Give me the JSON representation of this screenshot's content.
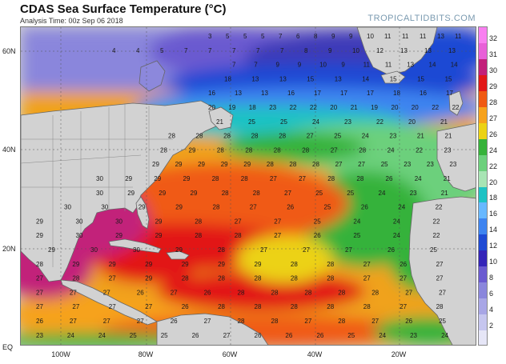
{
  "header": {
    "title": "CDAS Sea Surface Temperature (°C)",
    "subtitle": "Analysis Time: 00z Sep 06 2018",
    "brand": "TROPICALTIDBITS.COM"
  },
  "map": {
    "region": "North Atlantic Ocean",
    "ocean_color": "#d6d6d6",
    "land_color": "#d4d4d4",
    "y_labels": [
      "60N",
      "40N",
      "20N",
      "EQ"
    ],
    "x_labels": [
      "100W",
      "80W",
      "60W",
      "40W",
      "20W"
    ],
    "sst_values": [
      {
        "row": 1,
        "labels": [
          "3",
          "5",
          "5",
          "5",
          "7",
          "6",
          "8",
          "9",
          "9",
          "10",
          "11",
          "11",
          "11",
          "13",
          "11"
        ]
      },
      {
        "row": 2,
        "labels": [
          "4",
          "4",
          "5",
          "7",
          "7",
          "7",
          "7",
          "7",
          "8",
          "9",
          "10",
          "12",
          "13",
          "13",
          "13"
        ]
      },
      {
        "row": 3,
        "labels": [
          "7",
          "7",
          "9",
          "9",
          "10",
          "9",
          "11",
          "11",
          "13",
          "14",
          "14"
        ]
      },
      {
        "row": 4,
        "labels": [
          "18",
          "13",
          "13",
          "15",
          "13",
          "14",
          "15",
          "15",
          "15"
        ]
      },
      {
        "row": 5,
        "labels": [
          "16",
          "13",
          "13",
          "16",
          "17",
          "17",
          "17",
          "18",
          "16",
          "17"
        ]
      },
      {
        "row": 6,
        "labels": [
          "20",
          "19",
          "18",
          "23",
          "22",
          "22",
          "20",
          "21",
          "19",
          "20",
          "20",
          "22",
          "22"
        ]
      },
      {
        "row": 7,
        "labels": [
          "21",
          "25",
          "25",
          "24",
          "23",
          "22",
          "20",
          "21"
        ]
      },
      {
        "row": 8,
        "labels": [
          "28",
          "28",
          "28",
          "28",
          "28",
          "27",
          "25",
          "24",
          "23",
          "21",
          "21"
        ]
      },
      {
        "row": 9,
        "labels": [
          "28",
          "29",
          "28",
          "28",
          "28",
          "28",
          "27",
          "28",
          "24",
          "22",
          "23"
        ]
      },
      {
        "row": 10,
        "labels": [
          "29",
          "29",
          "29",
          "29",
          "29",
          "28",
          "28",
          "28",
          "27",
          "27",
          "25",
          "23",
          "23",
          "23"
        ]
      },
      {
        "row": 11,
        "labels": [
          "30",
          "29",
          "29",
          "29",
          "28",
          "28",
          "27",
          "27",
          "28",
          "28",
          "26",
          "24",
          "21"
        ]
      },
      {
        "row": 12,
        "labels": [
          "30",
          "29",
          "29",
          "29",
          "28",
          "28",
          "27",
          "25",
          "25",
          "24",
          "23",
          "21"
        ]
      },
      {
        "row": 13,
        "labels": [
          "30",
          "30",
          "29",
          "29",
          "28",
          "27",
          "26",
          "25",
          "26",
          "24",
          "22"
        ]
      },
      {
        "row": 14,
        "labels": [
          "29",
          "30",
          "30",
          "29",
          "28",
          "27",
          "27",
          "25",
          "24",
          "24",
          "22"
        ]
      },
      {
        "row": 15,
        "labels": [
          "29",
          "30",
          "29",
          "29",
          "28",
          "28",
          "27",
          "26",
          "25",
          "24",
          "22"
        ]
      },
      {
        "row": 16,
        "labels": [
          "29",
          "30",
          "30",
          "29",
          "28",
          "27",
          "27",
          "27",
          "26",
          "25"
        ]
      },
      {
        "row": 17,
        "labels": [
          "28",
          "29",
          "29",
          "29",
          "29",
          "29",
          "29",
          "28",
          "28",
          "27",
          "26",
          "27"
        ]
      },
      {
        "row": 18,
        "labels": [
          "27",
          "28",
          "27",
          "29",
          "28",
          "28",
          "28",
          "28",
          "28",
          "27",
          "27",
          "27"
        ]
      },
      {
        "row": 19,
        "labels": [
          "27",
          "27",
          "27",
          "26",
          "27",
          "26",
          "28",
          "28",
          "28",
          "28",
          "28",
          "27",
          "27"
        ]
      },
      {
        "row": 20,
        "labels": [
          "27",
          "27",
          "27",
          "27",
          "26",
          "28",
          "28",
          "28",
          "28",
          "28",
          "27",
          "28"
        ]
      },
      {
        "row": 21,
        "labels": [
          "26",
          "27",
          "27",
          "27",
          "26",
          "27",
          "28",
          "28",
          "27",
          "28",
          "27",
          "26",
          "25"
        ]
      },
      {
        "row": 22,
        "labels": [
          "23",
          "24",
          "24",
          "25",
          "25",
          "26",
          "27",
          "26",
          "26",
          "26",
          "25",
          "24",
          "23",
          "24"
        ]
      }
    ]
  },
  "colorbar": {
    "labels": [
      "32",
      "31",
      "30",
      "29",
      "28",
      "27",
      "26",
      "24",
      "22",
      "20",
      "18",
      "16",
      "14",
      "12",
      "10",
      "8",
      "6",
      "4",
      "2"
    ],
    "colors": [
      "#f87ff0",
      "#e860d8",
      "#c2207a",
      "#e21818",
      "#f05a12",
      "#f6a21c",
      "#ecd214",
      "#36b23a",
      "#6cd07c",
      "#a8e4b4",
      "#1ec2c4",
      "#68b8ff",
      "#3e84f0",
      "#1e4ad4",
      "#3424b8",
      "#6a5ad0",
      "#8a86dc",
      "#a8a6e6",
      "#c6c6ef",
      "#e6e6f7"
    ]
  }
}
